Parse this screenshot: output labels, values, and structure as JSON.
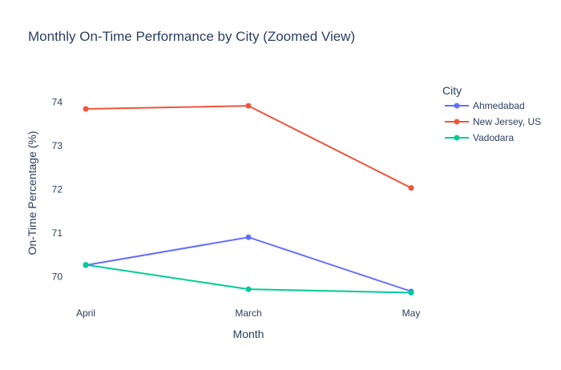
{
  "chart_data": {
    "type": "line",
    "title": "Monthly On-Time Performance by City (Zoomed View)",
    "xlabel": "Month",
    "ylabel": "On-Time Percentage (%)",
    "categories": [
      "April",
      "March",
      "May"
    ],
    "ylim": [
      69.4,
      74.5
    ],
    "yticks": [
      70,
      71,
      72,
      73,
      74
    ],
    "grid": false,
    "legend": {
      "title": "City",
      "placement": "top-right"
    },
    "series": [
      {
        "name": "Ahmedabad",
        "color": "#636efa",
        "values": [
          70.26,
          70.9,
          69.66
        ]
      },
      {
        "name": "New Jersey, US",
        "color": "#ef553b",
        "values": [
          73.84,
          73.91,
          72.03
        ]
      },
      {
        "name": "Vadodara",
        "color": "#00cc96",
        "values": [
          70.27,
          69.71,
          69.63
        ]
      }
    ]
  }
}
